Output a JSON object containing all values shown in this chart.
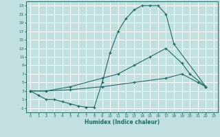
{
  "xlabel": "Humidex (Indice chaleur)",
  "xlim": [
    -0.5,
    23.5
  ],
  "ylim": [
    -2,
    24
  ],
  "xticks": [
    0,
    1,
    2,
    3,
    4,
    5,
    6,
    7,
    8,
    9,
    10,
    11,
    12,
    13,
    14,
    15,
    16,
    17,
    18,
    19,
    20,
    21,
    22,
    23
  ],
  "yticks": [
    -1,
    1,
    3,
    5,
    7,
    9,
    11,
    13,
    15,
    17,
    19,
    21,
    23
  ],
  "background_color": "#c2e0e0",
  "grid_color": "#ffffff",
  "line_color": "#1a6b5e",
  "line1_x": [
    0,
    1,
    2,
    3,
    4,
    5,
    6,
    7,
    8,
    9,
    10,
    11,
    12,
    13,
    14,
    15,
    16,
    17,
    18,
    22
  ],
  "line1_y": [
    3,
    2,
    1,
    1,
    0.5,
    0,
    -0.5,
    -0.8,
    -0.8,
    5,
    12,
    17,
    20,
    22,
    23,
    23,
    23,
    21,
    14,
    4
  ],
  "line2_x": [
    0,
    2,
    5,
    9,
    11,
    13,
    15,
    17,
    19,
    20,
    22
  ],
  "line2_y": [
    3,
    3,
    4,
    6,
    7,
    9,
    11,
    13,
    9.5,
    7,
    4
  ],
  "line3_x": [
    0,
    2,
    5,
    9,
    13,
    17,
    19,
    21,
    22
  ],
  "line3_y": [
    3,
    3,
    3.3,
    4,
    5,
    6,
    7,
    5,
    4
  ]
}
